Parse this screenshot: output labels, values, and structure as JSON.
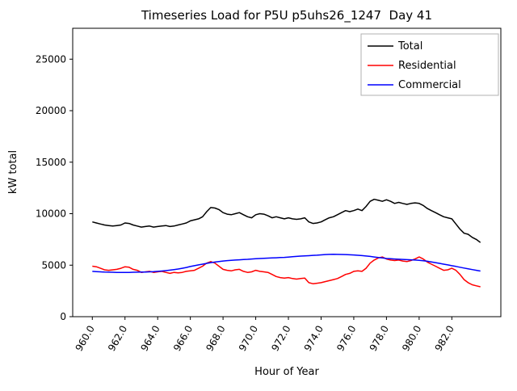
{
  "chart_data": {
    "type": "line",
    "title": "Timeseries Load for P5U p5uhs26_1247  Day 41",
    "xlabel": "Hour of Year",
    "ylabel": "kW total",
    "xlim": [
      958.8,
      985.0
    ],
    "ylim": [
      0,
      28000
    ],
    "grid": false,
    "legend_position": "upper right",
    "x_ticks": [
      960,
      962,
      964,
      966,
      968,
      970,
      972,
      974,
      976,
      978,
      980,
      982
    ],
    "x_tick_labels": [
      "960.0",
      "962.0",
      "964.0",
      "966.0",
      "968.0",
      "970.0",
      "972.0",
      "974.0",
      "976.0",
      "978.0",
      "980.0",
      "982.0"
    ],
    "y_ticks": [
      0,
      5000,
      10000,
      15000,
      20000,
      25000
    ],
    "y_tick_labels": [
      "0",
      "5000",
      "10000",
      "15000",
      "20000",
      "25000"
    ],
    "x": [
      960.0,
      960.25,
      960.5,
      960.75,
      961.0,
      961.25,
      961.5,
      961.75,
      962.0,
      962.25,
      962.5,
      962.75,
      963.0,
      963.25,
      963.5,
      963.75,
      964.0,
      964.25,
      964.5,
      964.75,
      965.0,
      965.25,
      965.5,
      965.75,
      966.0,
      966.25,
      966.5,
      966.75,
      967.0,
      967.25,
      967.5,
      967.75,
      968.0,
      968.25,
      968.5,
      968.75,
      969.0,
      969.25,
      969.5,
      969.75,
      970.0,
      970.25,
      970.5,
      970.75,
      971.0,
      971.25,
      971.5,
      971.75,
      972.0,
      972.25,
      972.5,
      972.75,
      973.0,
      973.25,
      973.5,
      973.75,
      974.0,
      974.25,
      974.5,
      974.75,
      975.0,
      975.25,
      975.5,
      975.75,
      976.0,
      976.25,
      976.5,
      976.75,
      977.0,
      977.25,
      977.5,
      977.75,
      978.0,
      978.25,
      978.5,
      978.75,
      979.0,
      979.25,
      979.5,
      979.75,
      980.0,
      980.25,
      980.5,
      980.75,
      981.0,
      981.25,
      981.5,
      981.75,
      982.0,
      982.25,
      982.5,
      982.75,
      983.0,
      983.25,
      983.5,
      983.75
    ],
    "series": [
      {
        "name": "Total",
        "color": "#000000",
        "values": [
          9200,
          9100,
          9000,
          8900,
          8850,
          8800,
          8850,
          8900,
          9100,
          9050,
          8900,
          8800,
          8700,
          8750,
          8800,
          8700,
          8750,
          8800,
          8850,
          8750,
          8800,
          8900,
          9000,
          9100,
          9300,
          9400,
          9500,
          9700,
          10200,
          10600,
          10550,
          10400,
          10100,
          9950,
          9900,
          10000,
          10100,
          9900,
          9700,
          9600,
          9900,
          10000,
          9950,
          9800,
          9600,
          9700,
          9600,
          9500,
          9600,
          9500,
          9450,
          9500,
          9600,
          9200,
          9050,
          9100,
          9200,
          9400,
          9600,
          9700,
          9900,
          10100,
          10300,
          10200,
          10300,
          10450,
          10300,
          10700,
          11200,
          11400,
          11300,
          11200,
          11350,
          11200,
          11000,
          11100,
          11000,
          10900,
          11000,
          11050,
          11000,
          10800,
          10500,
          10300,
          10100,
          9900,
          9700,
          9600,
          9500,
          9000,
          8500,
          8100,
          8000,
          7700,
          7500,
          7200
        ]
      },
      {
        "name": "Residential",
        "color": "#ff0000",
        "values": [
          4900,
          4850,
          4700,
          4550,
          4500,
          4550,
          4600,
          4700,
          4850,
          4800,
          4600,
          4500,
          4300,
          4350,
          4400,
          4300,
          4350,
          4400,
          4300,
          4200,
          4300,
          4250,
          4300,
          4400,
          4450,
          4500,
          4700,
          4900,
          5200,
          5350,
          5200,
          4900,
          4600,
          4500,
          4450,
          4550,
          4600,
          4400,
          4300,
          4350,
          4500,
          4400,
          4350,
          4300,
          4100,
          3900,
          3800,
          3750,
          3800,
          3700,
          3650,
          3700,
          3750,
          3300,
          3200,
          3250,
          3300,
          3400,
          3500,
          3600,
          3700,
          3900,
          4100,
          4200,
          4400,
          4450,
          4400,
          4700,
          5200,
          5500,
          5700,
          5800,
          5600,
          5500,
          5450,
          5500,
          5400,
          5350,
          5450,
          5600,
          5800,
          5600,
          5300,
          5100,
          4900,
          4700,
          4500,
          4550,
          4700,
          4500,
          4100,
          3600,
          3300,
          3100,
          3000,
          2900
        ]
      },
      {
        "name": "Commercial",
        "color": "#0000ff",
        "values": [
          4400,
          4380,
          4350,
          4330,
          4320,
          4310,
          4300,
          4300,
          4300,
          4300,
          4310,
          4320,
          4330,
          4340,
          4350,
          4370,
          4400,
          4430,
          4470,
          4520,
          4570,
          4630,
          4700,
          4780,
          4870,
          4950,
          5030,
          5100,
          5180,
          5250,
          5300,
          5350,
          5400,
          5440,
          5470,
          5500,
          5520,
          5550,
          5570,
          5600,
          5620,
          5650,
          5670,
          5690,
          5700,
          5720,
          5740,
          5760,
          5790,
          5820,
          5850,
          5880,
          5900,
          5920,
          5950,
          5970,
          6000,
          6030,
          6050,
          6060,
          6050,
          6040,
          6030,
          6010,
          5990,
          5960,
          5930,
          5890,
          5850,
          5800,
          5750,
          5700,
          5650,
          5620,
          5600,
          5580,
          5560,
          5540,
          5520,
          5500,
          5470,
          5430,
          5380,
          5320,
          5250,
          5180,
          5100,
          5030,
          4950,
          4880,
          4800,
          4720,
          4650,
          4570,
          4500,
          4430
        ]
      }
    ]
  }
}
